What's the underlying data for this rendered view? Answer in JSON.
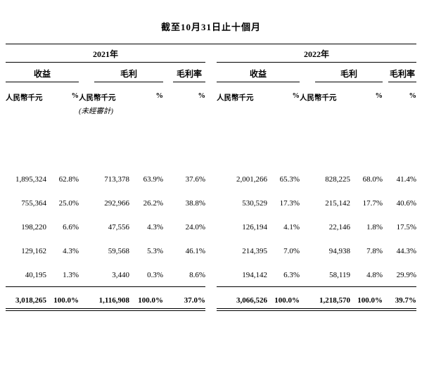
{
  "title": "截至10月31日止十個月",
  "table": {
    "years": [
      {
        "label": "2021年"
      },
      {
        "label": "2022年"
      }
    ],
    "metrics": {
      "revenue": "收益",
      "gross_profit": "毛利",
      "gross_margin": "毛利率"
    },
    "units": {
      "currency": "人民幣千元",
      "percent": "%",
      "unaudited": "(未經審計)"
    },
    "rows": [
      {
        "c": [
          "1,895,324",
          "62.8%",
          "713,378",
          "63.9%",
          "37.6%",
          "2,001,266",
          "65.3%",
          "828,225",
          "68.0%",
          "41.4%"
        ]
      },
      {
        "c": [
          "755,364",
          "25.0%",
          "292,966",
          "26.2%",
          "38.8%",
          "530,529",
          "17.3%",
          "215,142",
          "17.7%",
          "40.6%"
        ]
      },
      {
        "c": [
          "198,220",
          "6.6%",
          "47,556",
          "4.3%",
          "24.0%",
          "126,194",
          "4.1%",
          "22,146",
          "1.8%",
          "17.5%"
        ]
      },
      {
        "c": [
          "129,162",
          "4.3%",
          "59,568",
          "5.3%",
          "46.1%",
          "214,395",
          "7.0%",
          "94,938",
          "7.8%",
          "44.3%"
        ]
      },
      {
        "c": [
          "40,195",
          "1.3%",
          "3,440",
          "0.3%",
          "8.6%",
          "194,142",
          "6.3%",
          "58,119",
          "4.8%",
          "29.9%"
        ]
      }
    ],
    "total": {
      "c": [
        "3,018,265",
        "100.0%",
        "1,116,908",
        "100.0%",
        "37.0%",
        "3,066,526",
        "100.0%",
        "1,218,570",
        "100.0%",
        "39.7%"
      ]
    }
  }
}
